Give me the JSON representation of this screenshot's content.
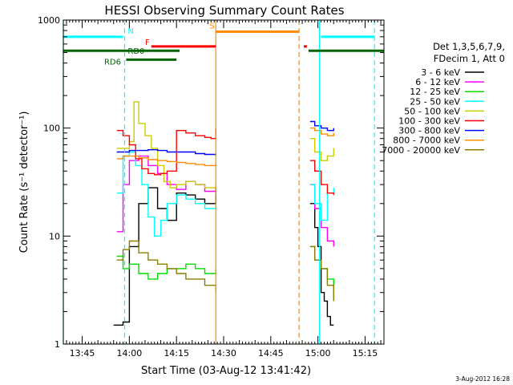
{
  "chart_data": {
    "type": "line",
    "title": "HESSI Observing Summary Count Rates",
    "xlabel": "Start Time (03-Aug-12 13:41:42)",
    "ylabel": "Count Rate (s⁻¹ detector⁻¹)",
    "ylim": [
      1,
      1000
    ],
    "y_scale": "log",
    "xlim": [
      "13:39",
      "15:21"
    ],
    "x_ticks": [
      "13:45",
      "14:00",
      "14:15",
      "14:30",
      "14:45",
      "15:00",
      "15:15"
    ],
    "y_ticks": [
      "1",
      "10",
      "100",
      "1000"
    ],
    "legend_header": [
      "Det 1,3,5,6,7,9,",
      "FDecim 1, Att 0"
    ],
    "legend_position": "right",
    "footer_date": "3-Aug-2012 16:28",
    "series": [
      {
        "name": "3 - 6 keV",
        "color": "#000000",
        "segments": [
          {
            "x": [
              "13:55",
              "13:56",
              "13:58",
              "14:00",
              "14:03",
              "14:06",
              "14:09",
              "14:12",
              "14:15",
              "14:18",
              "14:21",
              "14:24",
              "14:27.5"
            ],
            "y": [
              1.5,
              1.5,
              1.6,
              8,
              20,
              28,
              18,
              14,
              25,
              24,
              22,
              20,
              28
            ]
          },
          {
            "x": [
              "14:57.5",
              "14:59",
              "15:00",
              "15:01",
              "15:02",
              "15:03",
              "15:04",
              "15:05"
            ],
            "y": [
              20,
              12,
              8,
              3,
              2.5,
              1.8,
              1.5,
              1.5
            ]
          }
        ]
      },
      {
        "name": "6 - 12 keV",
        "color": "#ff00ff",
        "segments": [
          {
            "x": [
              "13:56",
              "13:58",
              "14:00",
              "14:03",
              "14:06",
              "14:09",
              "14:12",
              "14:15",
              "14:18",
              "14:21",
              "14:24",
              "14:27.5"
            ],
            "y": [
              11,
              30,
              50,
              55,
              45,
              38,
              30,
              27,
              32,
              30,
              26,
              24
            ]
          },
          {
            "x": [
              "14:57.5",
              "14:59",
              "15:01",
              "15:03",
              "15:05"
            ],
            "y": [
              30,
              18,
              12,
              9,
              8
            ]
          }
        ]
      },
      {
        "name": "12 - 25 keV",
        "color": "#00dd00",
        "segments": [
          {
            "x": [
              "13:56",
              "13:58",
              "14:00",
              "14:03",
              "14:06",
              "14:09",
              "14:12",
              "14:15",
              "14:18",
              "14:21",
              "14:24",
              "14:27.5"
            ],
            "y": [
              6.5,
              5,
              5.5,
              4.5,
              4,
              4.5,
              5,
              5,
              5.5,
              5,
              4.5,
              5
            ]
          },
          {
            "x": [
              "14:57.5",
              "14:59",
              "15:01",
              "15:03",
              "15:05"
            ],
            "y": [
              8,
              6,
              5,
              4,
              3
            ]
          }
        ]
      },
      {
        "name": "25 - 50 keV",
        "color": "#00ffff",
        "segments": [
          {
            "x": [
              "13:56",
              "13:58",
              "14:00",
              "14:02",
              "14:04",
              "14:06",
              "14:08",
              "14:10",
              "14:12",
              "14:15",
              "14:18",
              "14:21",
              "14:24",
              "14:27.5"
            ],
            "y": [
              25,
              55,
              60,
              45,
              30,
              15,
              10,
              14,
              20,
              24,
              22,
              20,
              18,
              20
            ]
          },
          {
            "x": [
              "14:57.5",
              "14:59",
              "15:01",
              "15:03",
              "15:05"
            ],
            "y": [
              30,
              20,
              14,
              25,
              28
            ]
          }
        ]
      },
      {
        "name": "50 - 100 keV",
        "color": "#cccc00",
        "segments": [
          {
            "x": [
              "13:56",
              "13:58",
              "14:00",
              "14:01.5",
              "14:03",
              "14:05",
              "14:07",
              "14:09",
              "14:11",
              "14:13",
              "14:15",
              "14:18",
              "14:21",
              "14:24",
              "14:27.5"
            ],
            "y": [
              65,
              65,
              75,
              175,
              110,
              85,
              65,
              45,
              32,
              28,
              30,
              32,
              30,
              28,
              30
            ]
          },
          {
            "x": [
              "14:57.5",
              "14:59",
              "15:01",
              "15:03",
              "15:05"
            ],
            "y": [
              80,
              60,
              50,
              55,
              65
            ]
          }
        ]
      },
      {
        "name": "100 - 300 keV",
        "color": "#ff0000",
        "segments": [
          {
            "x": [
              "13:56",
              "13:58",
              "14:00",
              "14:02",
              "14:04",
              "14:06",
              "14:08",
              "14:10",
              "14:12",
              "14:15",
              "14:18",
              "14:21",
              "14:24",
              "14:26",
              "14:27.5"
            ],
            "y": [
              95,
              85,
              70,
              52,
              42,
              38,
              37,
              38,
              40,
              95,
              90,
              85,
              82,
              80,
              100
            ]
          },
          {
            "x": [
              "14:57.5",
              "14:59",
              "15:01",
              "15:03",
              "15:05"
            ],
            "y": [
              50,
              40,
              30,
              25,
              24
            ]
          }
        ]
      },
      {
        "name": "300 - 800 keV",
        "color": "#0000ff",
        "segments": [
          {
            "x": [
              "13:56",
              "13:58",
              "14:00",
              "14:03",
              "14:06",
              "14:09",
              "14:12",
              "14:15",
              "14:18",
              "14:21",
              "14:24",
              "14:27.5"
            ],
            "y": [
              60,
              60,
              62,
              62,
              63,
              62,
              60,
              60,
              60,
              58,
              57,
              56
            ]
          },
          {
            "x": [
              "14:57.5",
              "14:59",
              "15:01",
              "15:03",
              "15:05"
            ],
            "y": [
              115,
              105,
              100,
              95,
              100
            ]
          }
        ]
      },
      {
        "name": "800 - 7000 keV",
        "color": "#ff8c00",
        "segments": [
          {
            "x": [
              "13:56",
              "13:58",
              "14:00",
              "14:03",
              "14:06",
              "14:09",
              "14:12",
              "14:15",
              "14:18",
              "14:21",
              "14:24",
              "14:27.5"
            ],
            "y": [
              52,
              55,
              55,
              53,
              51,
              50,
              49,
              48,
              47,
              46,
              45,
              47
            ]
          },
          {
            "x": [
              "14:57.5",
              "14:59",
              "15:01",
              "15:03",
              "15:05"
            ],
            "y": [
              100,
              95,
              88,
              85,
              90
            ]
          }
        ]
      },
      {
        "name": "7000 - 20000 keV",
        "color": "#8b7d00",
        "segments": [
          {
            "x": [
              "13:56",
              "13:58",
              "14:00",
              "14:03",
              "14:06",
              "14:09",
              "14:12",
              "14:15",
              "14:18",
              "14:21",
              "14:24",
              "14:27.5"
            ],
            "y": [
              6,
              7.5,
              9,
              7,
              6,
              5.5,
              5,
              4.5,
              4,
              4,
              3.5,
              3
            ]
          },
          {
            "x": [
              "14:57.5",
              "14:59",
              "15:01",
              "15:03",
              "15:05"
            ],
            "y": [
              8,
              6,
              5,
              3.5,
              2.5
            ]
          }
        ]
      }
    ],
    "flags": [
      {
        "label": "N",
        "color": "#00ffff",
        "y": 700,
        "x": [
          [
            "13:39",
            "13:58"
          ],
          [
            "15:01",
            "15:18"
          ]
        ]
      },
      {
        "label": "RD0",
        "color": "#006400",
        "y": 520,
        "x": [
          [
            "13:39",
            "14:16"
          ],
          [
            "14:57",
            "15:21"
          ]
        ]
      },
      {
        "label": "F",
        "color": "#ff0000",
        "y": 570,
        "x": [
          [
            "14:07",
            "14:27.5"
          ],
          [
            "14:55.5",
            "14:56.5"
          ]
        ]
      },
      {
        "label": "S",
        "color": "#ff8c00",
        "y": 780,
        "x": [
          [
            "14:27.5",
            "14:54"
          ]
        ]
      },
      {
        "label": "RD6",
        "color": "#006400",
        "y": 430,
        "x": [
          [
            "13:59",
            "14:15"
          ]
        ]
      }
    ],
    "vertical_markers": [
      {
        "x": "13:39",
        "color": "#00ffff",
        "style": "solid"
      },
      {
        "x": "13:58.5",
        "color": "#00ffff",
        "style": "dashed"
      },
      {
        "x": "14:27.5",
        "color": "#ff8c00",
        "style": "solid"
      },
      {
        "x": "14:54",
        "color": "#ff8c00",
        "style": "dashed"
      },
      {
        "x": "15:00.5",
        "color": "#00ffff",
        "style": "solid"
      },
      {
        "x": "15:18",
        "color": "#00ffff",
        "style": "dashed"
      }
    ]
  }
}
